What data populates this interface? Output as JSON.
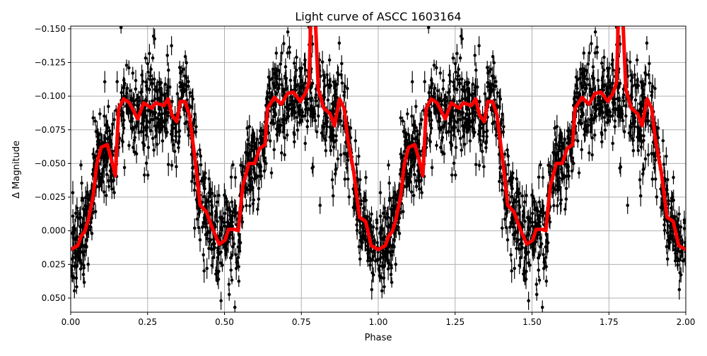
{
  "chart_data": {
    "type": "scatter",
    "title": "Light curve of ASCC 1603164",
    "xlabel": "Phase",
    "ylabel": "Δ Magnitude",
    "xlim": [
      0,
      2
    ],
    "ylim": [
      0.0605,
      -0.152
    ],
    "y_inverted": true,
    "grid": true,
    "xticks": [
      "0.00",
      "0.25",
      "0.50",
      "0.75",
      "1.00",
      "1.25",
      "1.50",
      "1.75",
      "2.00"
    ],
    "xtick_values": [
      0,
      0.25,
      0.5,
      0.75,
      1,
      1.25,
      1.5,
      1.75,
      2
    ],
    "yticks": [
      "−0.150",
      "−0.125",
      "−0.100",
      "−0.075",
      "−0.050",
      "−0.025",
      "0.000",
      "0.025",
      "0.050"
    ],
    "ytick_values": [
      -0.15,
      -0.125,
      -0.1,
      -0.075,
      -0.05,
      -0.025,
      0,
      0.025,
      0.05
    ],
    "colors": {
      "points": "#000000",
      "binned_curve": "#ff0000",
      "grid": "#b0b0b0"
    },
    "series": [
      {
        "kind": "binned-curve",
        "color": "#ff0000",
        "repeat_period": 1,
        "phase": [
          0,
          0.023,
          0.034,
          0.046,
          0.057,
          0.073,
          0.085,
          0.099,
          0.119,
          0.131,
          0.145,
          0.156,
          0.172,
          0.191,
          0.218,
          0.237,
          0.264,
          0.276,
          0.303,
          0.317,
          0.329,
          0.345,
          0.356,
          0.372,
          0.386,
          0.406,
          0.421,
          0.441,
          0.464,
          0.483,
          0.502,
          0.513,
          0.533,
          0.545,
          0.559,
          0.579,
          0.598,
          0.614,
          0.632,
          0.64,
          0.662,
          0.685,
          0.705,
          0.724,
          0.747,
          0.763,
          0.775,
          0.782,
          0.793,
          0.805,
          0.823,
          0.843,
          0.858,
          0.874,
          0.889,
          0.901,
          0.92,
          0.939,
          0.959,
          0.977,
          1.0
        ],
        "magnitude": [
          0.014,
          0.011,
          0.004,
          0.0005,
          -0.008,
          -0.026,
          -0.05,
          -0.062,
          -0.064,
          -0.054,
          -0.041,
          -0.091,
          -0.098,
          -0.095,
          -0.083,
          -0.095,
          -0.091,
          -0.095,
          -0.093,
          -0.098,
          -0.086,
          -0.081,
          -0.096,
          -0.096,
          -0.086,
          -0.05,
          -0.019,
          -0.014,
          0,
          0.01,
          0.007,
          -0.001,
          -0.001,
          0,
          -0.033,
          -0.05,
          -0.05,
          -0.061,
          -0.064,
          -0.091,
          -0.099,
          -0.094,
          -0.102,
          -0.103,
          -0.096,
          -0.102,
          -0.11,
          -0.17,
          -0.17,
          -0.105,
          -0.091,
          -0.087,
          -0.078,
          -0.098,
          -0.091,
          -0.068,
          -0.044,
          -0.01,
          -0.007,
          0.011,
          0.014
        ]
      },
      {
        "kind": "points-with-errorbars",
        "color": "#000000"
      }
    ]
  }
}
